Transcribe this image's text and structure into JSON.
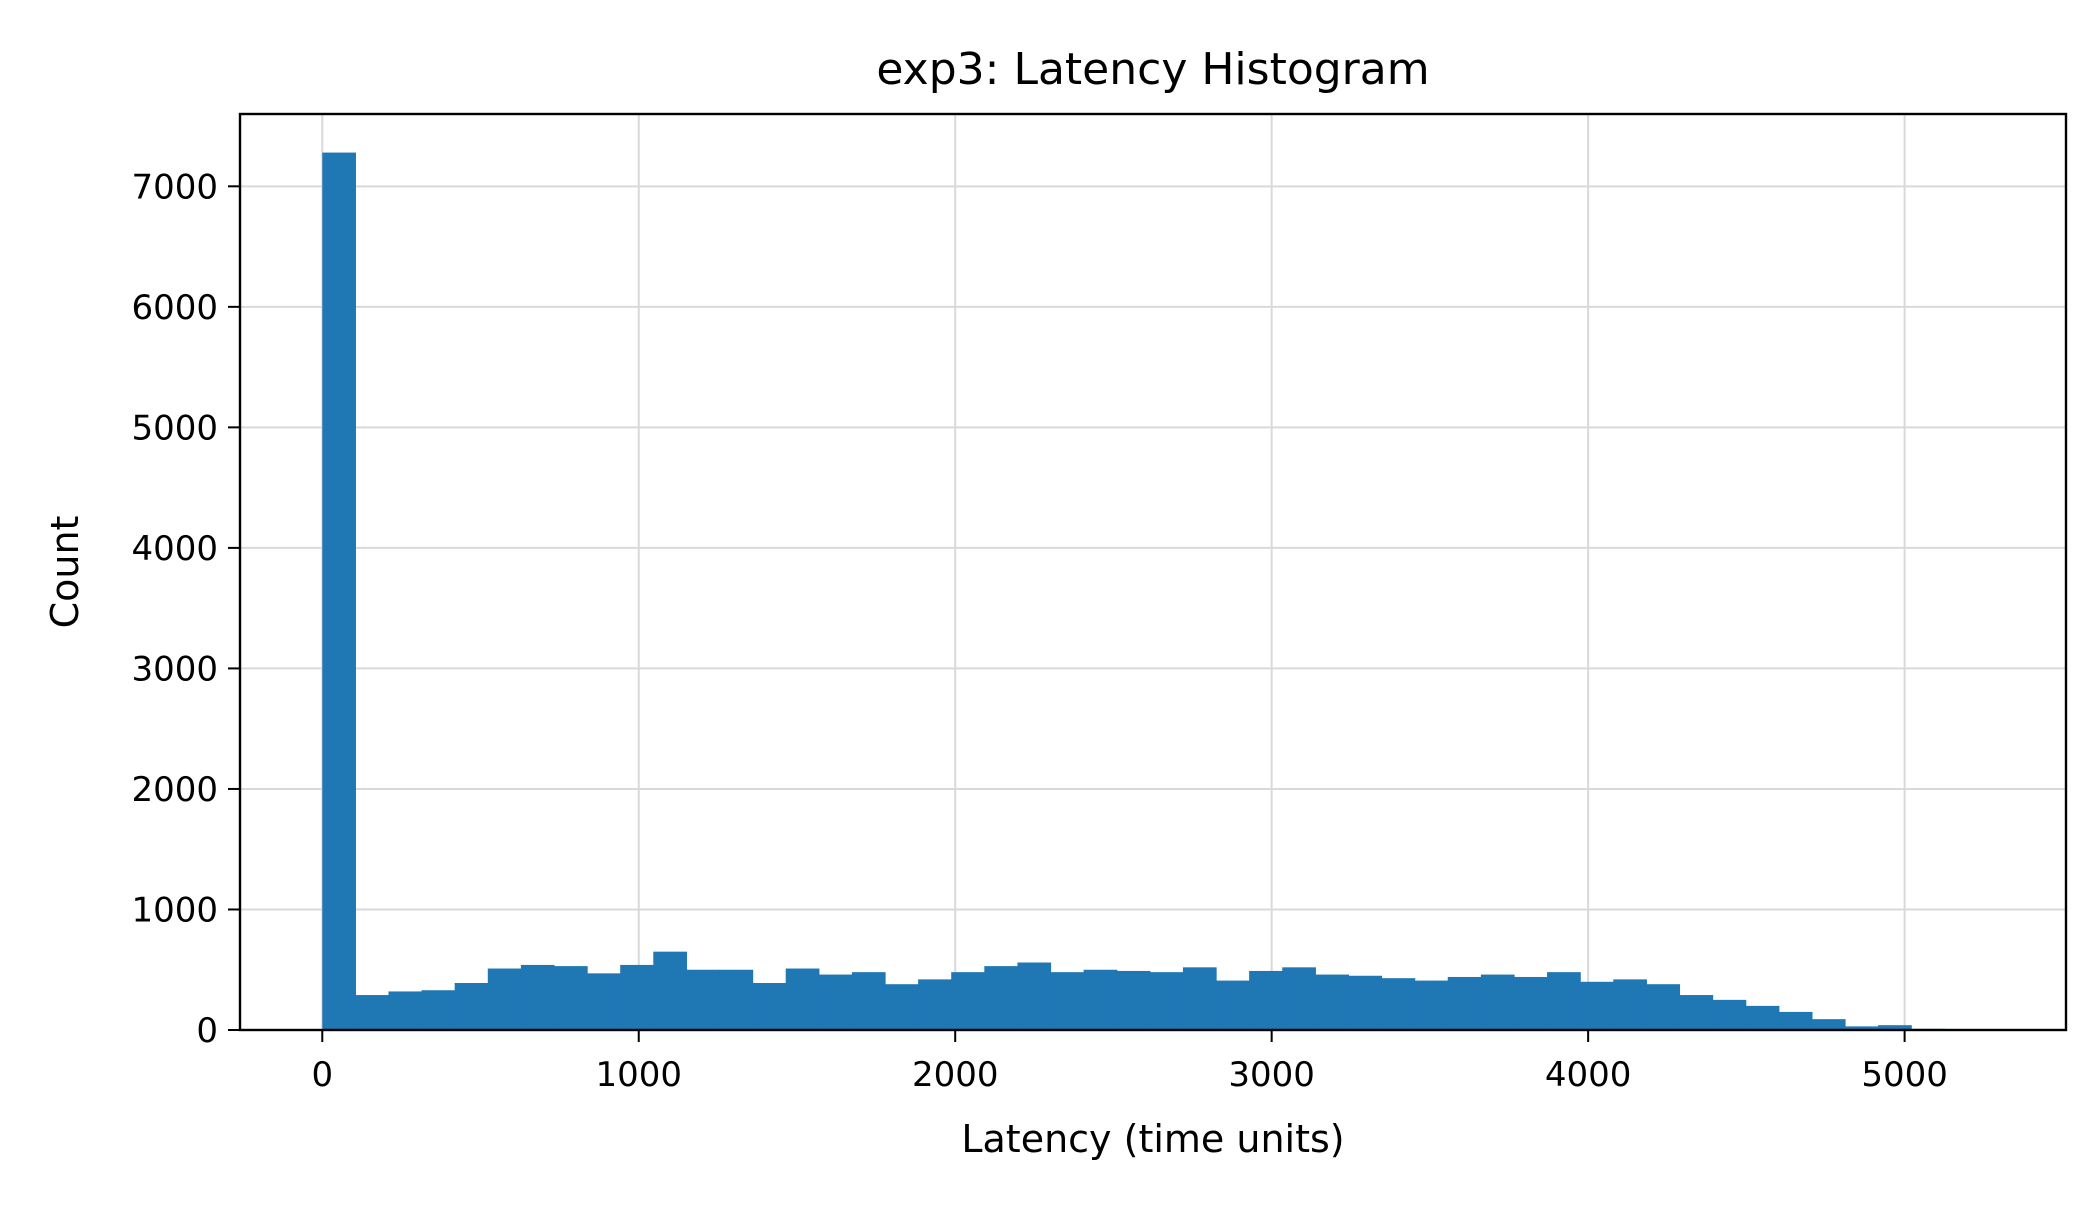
{
  "chart_data": {
    "type": "bar",
    "title": "exp3: Latency Histogram",
    "xlabel": "Latency (time units)",
    "ylabel": "Count",
    "xlim": [
      -260,
      5510
    ],
    "ylim": [
      0,
      7600
    ],
    "xticks": [
      0,
      1000,
      2000,
      3000,
      4000,
      5000
    ],
    "yticks": [
      0,
      1000,
      2000,
      3000,
      4000,
      5000,
      6000,
      7000
    ],
    "grid": true,
    "bar_color": "#1f77b4",
    "bin_width": 104.6,
    "bin_start": 0,
    "values": [
      7280,
      290,
      320,
      330,
      390,
      510,
      540,
      530,
      470,
      540,
      650,
      500,
      500,
      390,
      510,
      460,
      480,
      380,
      420,
      480,
      530,
      560,
      480,
      500,
      490,
      480,
      520,
      410,
      490,
      520,
      460,
      450,
      430,
      410,
      440,
      460,
      440,
      480,
      400,
      420,
      380,
      290,
      250,
      200,
      150,
      90,
      30,
      40,
      10,
      3,
      1
    ]
  }
}
